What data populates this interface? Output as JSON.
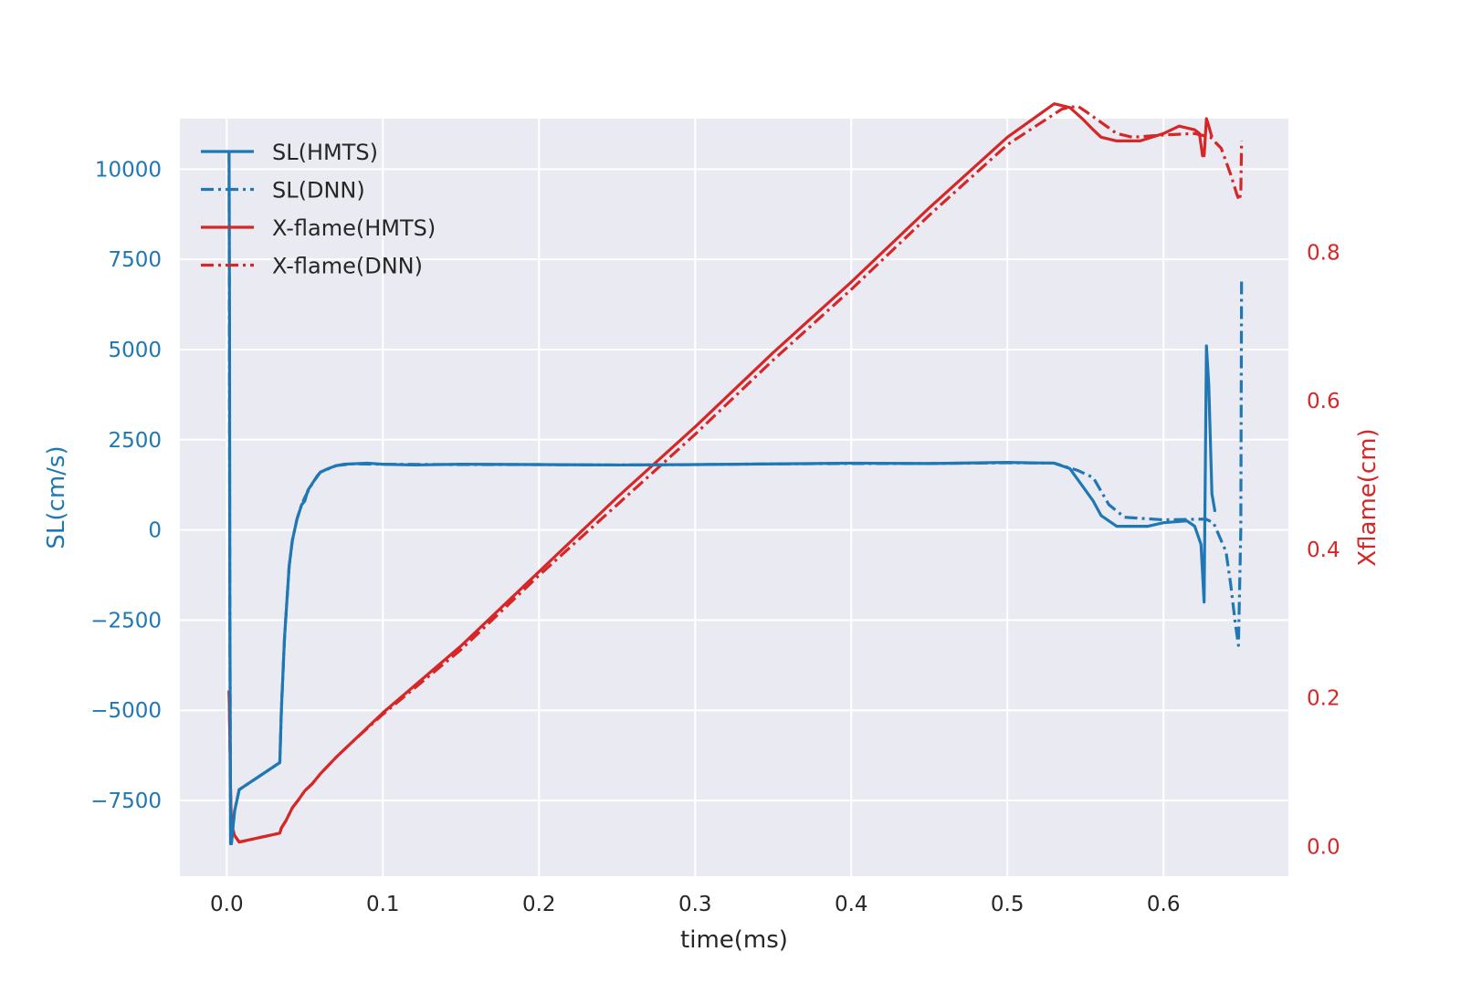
{
  "chart_data": {
    "type": "line",
    "title": "",
    "xlabel": "time(ms)",
    "ylabel_left": "SL(cm/s)",
    "ylabel_right": "Xflame(cm)",
    "xlim": [
      -0.03,
      0.68
    ],
    "ylim_left": [
      -9600,
      11400
    ],
    "ylim_right": [
      -0.04,
      0.98
    ],
    "x_ticks": [
      0.0,
      0.1,
      0.2,
      0.3,
      0.4,
      0.5,
      0.6
    ],
    "x_tick_labels": [
      "0.0",
      "0.1",
      "0.2",
      "0.3",
      "0.4",
      "0.5",
      "0.6"
    ],
    "y_left_ticks": [
      10000,
      7500,
      5000,
      2500,
      0,
      -2500,
      -5000,
      -7500
    ],
    "y_left_tick_labels": [
      "10000",
      "7500",
      "5000",
      "2500",
      "0",
      "−2500",
      "−5000",
      "−7500"
    ],
    "y_right_ticks": [
      0.0,
      0.2,
      0.4,
      0.6,
      0.8
    ],
    "y_right_tick_labels": [
      "0.0",
      "0.2",
      "0.4",
      "0.6",
      "0.8"
    ],
    "grid": true,
    "legend_position": "top-left",
    "colors": {
      "sl": "#1f77b4",
      "xflame": "#d62728",
      "background": "#eaeaf2",
      "grid": "#ffffff",
      "text": "#262626"
    },
    "series": [
      {
        "name": "SL(HMTS)",
        "axis": "left",
        "color": "#1f77b4",
        "style": "solid",
        "x": [
          0.0015,
          0.0018,
          0.002,
          0.0025,
          0.003,
          0.005,
          0.008,
          0.034,
          0.035,
          0.037,
          0.04,
          0.042,
          0.045,
          0.048,
          0.05,
          0.052,
          0.055,
          0.058,
          0.06,
          0.065,
          0.07,
          0.075,
          0.08,
          0.09,
          0.1,
          0.12,
          0.15,
          0.2,
          0.25,
          0.3,
          0.35,
          0.4,
          0.45,
          0.5,
          0.53,
          0.54,
          0.545,
          0.55,
          0.555,
          0.56,
          0.57,
          0.59,
          0.6,
          0.615,
          0.62,
          0.624,
          0.626,
          0.6275,
          0.629,
          0.631,
          0.633
        ],
        "y": [
          10500,
          6000,
          -2000,
          -8700,
          -8700,
          -7800,
          -7200,
          -6450,
          -5000,
          -3000,
          -1000,
          -300,
          300,
          700,
          800,
          1100,
          1300,
          1500,
          1600,
          1700,
          1780,
          1820,
          1830,
          1850,
          1820,
          1800,
          1820,
          1810,
          1800,
          1810,
          1830,
          1850,
          1840,
          1870,
          1850,
          1700,
          1400,
          1100,
          800,
          400,
          100,
          100,
          200,
          250,
          100,
          -400,
          -2000,
          5100,
          4000,
          1000,
          500
        ]
      },
      {
        "name": "SL(DNN)",
        "axis": "left",
        "color": "#1f77b4",
        "style": "dashdot",
        "x": [
          0.0015,
          0.002,
          0.0025,
          0.003,
          0.005,
          0.008,
          0.034,
          0.035,
          0.037,
          0.04,
          0.042,
          0.045,
          0.048,
          0.05,
          0.055,
          0.06,
          0.07,
          0.08,
          0.1,
          0.15,
          0.2,
          0.25,
          0.3,
          0.35,
          0.4,
          0.45,
          0.5,
          0.53,
          0.545,
          0.555,
          0.565,
          0.575,
          0.6,
          0.627,
          0.632,
          0.638,
          0.64,
          0.643,
          0.646,
          0.648,
          0.6495,
          0.65
        ],
        "y": [
          10500,
          -2000,
          -8700,
          -8700,
          -7800,
          -7200,
          -6450,
          -5000,
          -3000,
          -1000,
          -300,
          300,
          700,
          900,
          1300,
          1600,
          1780,
          1830,
          1820,
          1810,
          1810,
          1800,
          1810,
          1830,
          1840,
          1840,
          1860,
          1850,
          1650,
          1450,
          700,
          350,
          280,
          300,
          200,
          -400,
          -600,
          -1500,
          -2600,
          -3200,
          0,
          7000
        ]
      },
      {
        "name": "X-flame(HMTS)",
        "axis": "right",
        "color": "#d62728",
        "style": "solid",
        "x": [
          0.0015,
          0.002,
          0.0025,
          0.003,
          0.005,
          0.008,
          0.034,
          0.035,
          0.038,
          0.042,
          0.046,
          0.05,
          0.055,
          0.06,
          0.07,
          0.08,
          0.1,
          0.15,
          0.2,
          0.25,
          0.3,
          0.35,
          0.4,
          0.45,
          0.5,
          0.53,
          0.54,
          0.548,
          0.555,
          0.56,
          0.57,
          0.585,
          0.6,
          0.61,
          0.62,
          0.623,
          0.625,
          0.626,
          0.6275,
          0.629,
          0.631
        ],
        "y": [
          0.21,
          0.15,
          0.07,
          0.03,
          0.015,
          0.006,
          0.018,
          0.025,
          0.035,
          0.052,
          0.063,
          0.075,
          0.085,
          0.098,
          0.12,
          0.14,
          0.18,
          0.27,
          0.37,
          0.47,
          0.565,
          0.665,
          0.76,
          0.86,
          0.955,
          1.0,
          0.995,
          0.98,
          0.965,
          0.955,
          0.95,
          0.95,
          0.96,
          0.97,
          0.965,
          0.96,
          0.93,
          0.93,
          0.98,
          0.97,
          0.955
        ]
      },
      {
        "name": "X-flame(DNN)",
        "axis": "right",
        "color": "#d62728",
        "style": "dashdot",
        "x": [
          0.0015,
          0.002,
          0.0025,
          0.003,
          0.005,
          0.008,
          0.034,
          0.035,
          0.038,
          0.042,
          0.046,
          0.05,
          0.055,
          0.06,
          0.07,
          0.08,
          0.1,
          0.15,
          0.2,
          0.25,
          0.3,
          0.35,
          0.4,
          0.45,
          0.5,
          0.535,
          0.545,
          0.55,
          0.56,
          0.57,
          0.58,
          0.6,
          0.62,
          0.63,
          0.637,
          0.643,
          0.647,
          0.6485,
          0.6495,
          0.65
        ],
        "y": [
          0.21,
          0.15,
          0.07,
          0.03,
          0.015,
          0.006,
          0.018,
          0.025,
          0.035,
          0.052,
          0.063,
          0.075,
          0.085,
          0.098,
          0.12,
          0.14,
          0.178,
          0.265,
          0.365,
          0.46,
          0.555,
          0.655,
          0.75,
          0.85,
          0.945,
          0.993,
          0.997,
          0.99,
          0.975,
          0.96,
          0.955,
          0.958,
          0.96,
          0.955,
          0.94,
          0.905,
          0.878,
          0.87,
          0.88,
          0.95
        ]
      }
    ]
  }
}
